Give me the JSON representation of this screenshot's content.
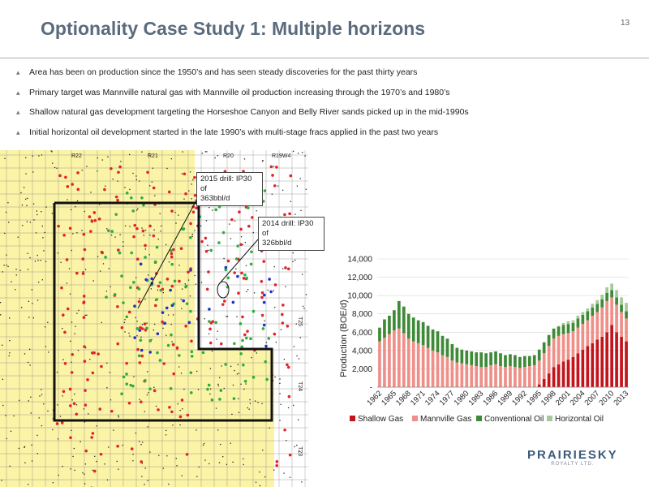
{
  "title": "Optionality Case Study 1: Multiple horizons",
  "page_number": "13",
  "bullets": [
    "Area has been on production since the 1950’s and has seen steady discoveries for the past thirty years",
    "Primary target was Mannville natural gas with Mannville oil production increasing through the 1970’s and 1980’s",
    "Shallow natural gas development targeting the Horseshoe Canyon and Belly River sands picked up in the mid-1990s",
    "Initial horizontal oil development started in the late 1990’s with multi-stage fracs applied in the past two years"
  ],
  "map": {
    "range_labels": [
      "R22",
      "R21",
      "R20",
      "R19W4"
    ],
    "township_labels": [
      "T25",
      "T24",
      "T23"
    ],
    "callout_2015": [
      "2015 drill: IP30 of",
      "363bbl/d"
    ],
    "callout_2014": [
      "2014 drill: IP30 of",
      "326bbl/d"
    ],
    "colors": {
      "land": "#fbf3a6",
      "red_wells": "#e3232a",
      "green_wells": "#2fae3c",
      "blue_wells": "#2030c8"
    }
  },
  "logo": {
    "name": "PRAIRIESKY",
    "sub": "ROYALTY LTD."
  },
  "chart_data": {
    "type": "bar",
    "stacked": true,
    "ylabel": "Production (BOE/d)",
    "xlabel": "",
    "ylim": [
      0,
      14000
    ],
    "y_ticks": [
      "-",
      "2,000",
      "4,000",
      "6,000",
      "8,000",
      "10,000",
      "12,000",
      "14,000"
    ],
    "x_tick_labels": [
      "1962",
      "1965",
      "1968",
      "1971",
      "1974",
      "1977",
      "1980",
      "1983",
      "1986",
      "1989",
      "1992",
      "1995",
      "1998",
      "2001",
      "2004",
      "2007",
      "2010",
      "2013"
    ],
    "legend_position": "bottom",
    "series_colors": [
      "#c3141c",
      "#ef8f88",
      "#3e8a37",
      "#a6c99a"
    ],
    "categories": [
      "1962",
      "1963",
      "1964",
      "1965",
      "1966",
      "1967",
      "1968",
      "1969",
      "1970",
      "1971",
      "1972",
      "1973",
      "1974",
      "1975",
      "1976",
      "1977",
      "1978",
      "1979",
      "1980",
      "1981",
      "1982",
      "1983",
      "1984",
      "1985",
      "1986",
      "1987",
      "1988",
      "1989",
      "1990",
      "1991",
      "1992",
      "1993",
      "1994",
      "1995",
      "1996",
      "1997",
      "1998",
      "1999",
      "2000",
      "2001",
      "2002",
      "2003",
      "2004",
      "2005",
      "2006",
      "2007",
      "2008",
      "2009",
      "2010",
      "2011",
      "2012",
      "2013"
    ],
    "series": [
      {
        "name": "Shallow Gas",
        "values": [
          0,
          0,
          0,
          0,
          0,
          0,
          0,
          0,
          0,
          0,
          0,
          0,
          0,
          0,
          0,
          0,
          0,
          0,
          0,
          0,
          0,
          0,
          0,
          0,
          0,
          0,
          0,
          0,
          0,
          0,
          0,
          0,
          0,
          300,
          900,
          1500,
          2200,
          2500,
          2800,
          3000,
          3300,
          3700,
          4100,
          4500,
          4800,
          5200,
          5500,
          6000,
          6800,
          6000,
          5500,
          5000
        ]
      },
      {
        "name": "Mannville Gas",
        "values": [
          5000,
          5400,
          5800,
          6200,
          6400,
          5900,
          5300,
          5000,
          4800,
          4600,
          4300,
          4000,
          3800,
          3500,
          3300,
          2900,
          2700,
          2600,
          2500,
          2400,
          2300,
          2200,
          2200,
          2400,
          2500,
          2300,
          2200,
          2300,
          2200,
          2100,
          2200,
          2300,
          2400,
          2600,
          2800,
          3000,
          3100,
          3100,
          3000,
          2900,
          2800,
          2800,
          2800,
          2800,
          3000,
          3000,
          3200,
          3400,
          3000,
          3000,
          2700,
          2500
        ]
      },
      {
        "name": "Conventional Oil",
        "values": [
          1500,
          2000,
          2000,
          2200,
          3000,
          2900,
          2700,
          2600,
          2500,
          2500,
          2400,
          2300,
          2300,
          2100,
          2000,
          1800,
          1600,
          1500,
          1500,
          1500,
          1500,
          1600,
          1500,
          1400,
          1400,
          1400,
          1300,
          1300,
          1300,
          1200,
          1200,
          1100,
          1100,
          1200,
          1200,
          1200,
          1100,
          1000,
          1000,
          1000,
          900,
          1000,
          1000,
          1000,
          900,
          900,
          900,
          900,
          800,
          800,
          800,
          800
        ]
      },
      {
        "name": "Horizontal Oil",
        "values": [
          0,
          0,
          0,
          0,
          0,
          0,
          0,
          0,
          0,
          0,
          0,
          0,
          0,
          0,
          0,
          0,
          0,
          0,
          0,
          0,
          0,
          0,
          0,
          0,
          0,
          0,
          0,
          0,
          0,
          0,
          0,
          0,
          0,
          0,
          0,
          0,
          0,
          100,
          200,
          300,
          300,
          300,
          300,
          300,
          400,
          400,
          500,
          600,
          700,
          800,
          800,
          900
        ]
      }
    ]
  }
}
